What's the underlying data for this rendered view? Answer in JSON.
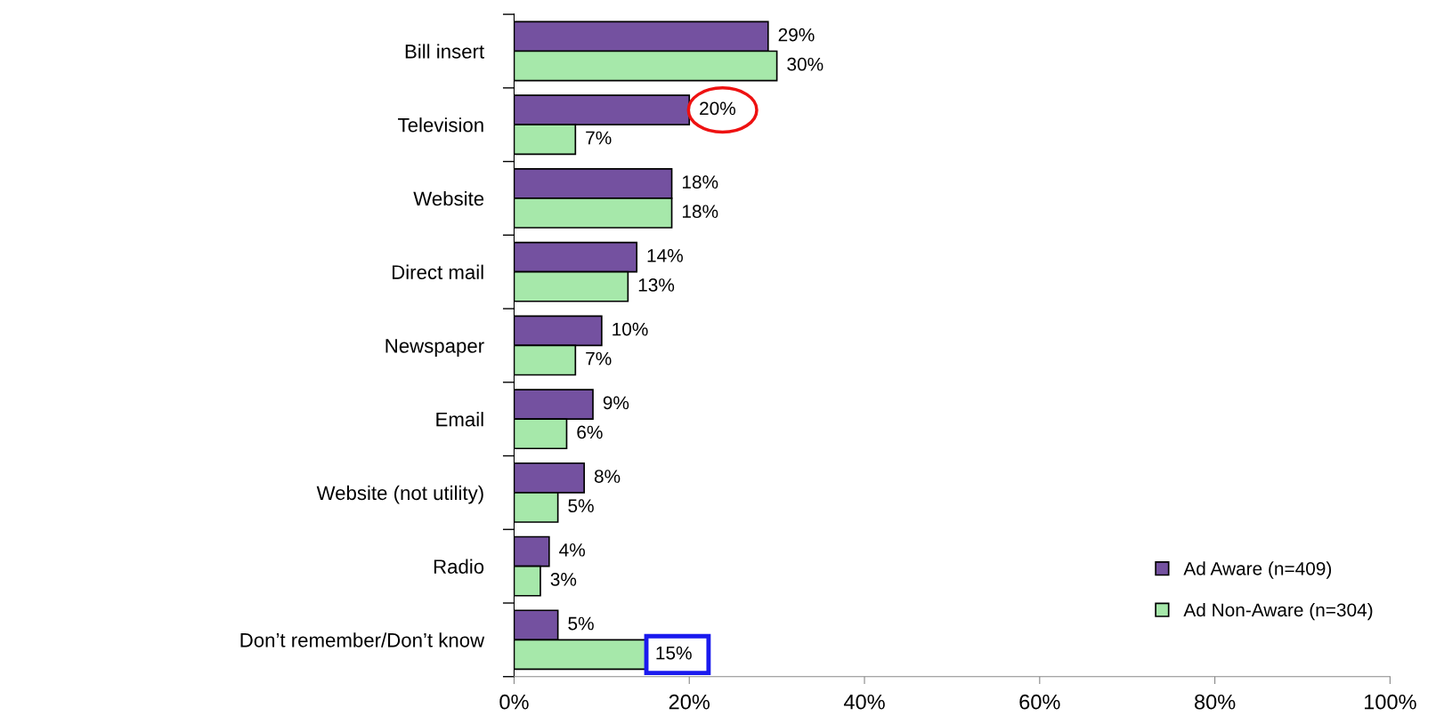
{
  "chart_data": {
    "type": "bar",
    "orientation": "horizontal",
    "categories": [
      "Bill insert",
      "Television",
      "Website",
      "Direct mail",
      "Newspaper",
      "Email",
      "Website (not utility)",
      "Radio",
      "Don’t remember/Don’t know"
    ],
    "series": [
      {
        "name": "Ad Aware (n=409)",
        "color": "#7451a0",
        "values": [
          29,
          20,
          18,
          14,
          10,
          9,
          8,
          4,
          5
        ],
        "value_labels": [
          "29%",
          "20%",
          "18%",
          "14%",
          "10%",
          "9%",
          "8%",
          "4%",
          "5%"
        ]
      },
      {
        "name": "Ad Non-Aware (n=304)",
        "color": "#a6e8aa",
        "values": [
          30,
          7,
          18,
          13,
          7,
          6,
          5,
          3,
          15
        ],
        "value_labels": [
          "30%",
          "7%",
          "18%",
          "13%",
          "7%",
          "6%",
          "5%",
          "3%",
          "15%"
        ]
      }
    ],
    "xlim": [
      0,
      100
    ],
    "xticks": [
      {
        "value": 0,
        "label": "0%"
      },
      {
        "value": 20,
        "label": "20%"
      },
      {
        "value": 40,
        "label": "40%"
      },
      {
        "value": 60,
        "label": "60%"
      },
      {
        "value": 80,
        "label": "80%"
      },
      {
        "value": 100,
        "label": "100%"
      }
    ],
    "grid": false,
    "legend": "bottom right"
  }
}
